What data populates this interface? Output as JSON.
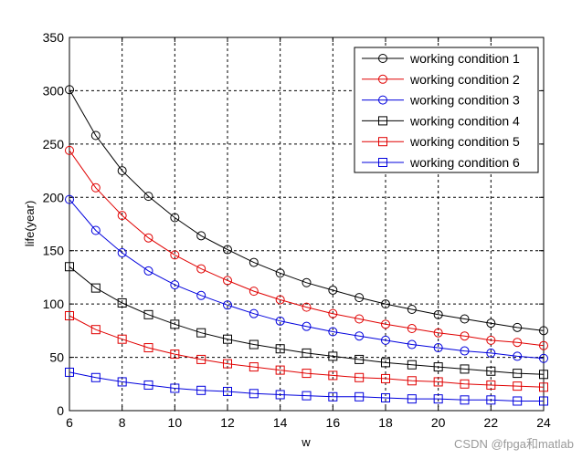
{
  "chart_data": {
    "type": "line",
    "title": "",
    "xlabel": "w",
    "ylabel": "life(year)",
    "xlim": [
      6,
      24
    ],
    "ylim": [
      0,
      350
    ],
    "xticks": [
      6,
      8,
      10,
      12,
      14,
      16,
      18,
      20,
      22,
      24
    ],
    "yticks": [
      0,
      50,
      100,
      150,
      200,
      250,
      300,
      350
    ],
    "grid": true,
    "legend_position": "top-right",
    "x": [
      6,
      7,
      8,
      9,
      10,
      11,
      12,
      13,
      14,
      15,
      16,
      17,
      18,
      19,
      20,
      21,
      22,
      23,
      24
    ],
    "series": [
      {
        "name": "working condition 1",
        "color": "#000000",
        "marker": "circle",
        "values": [
          301,
          258,
          225,
          201,
          181,
          164,
          151,
          139,
          129,
          120,
          113,
          106,
          100,
          95,
          90,
          86,
          82,
          78,
          75
        ]
      },
      {
        "name": "working condition 2",
        "color": "#e00000",
        "marker": "circle",
        "values": [
          244,
          209,
          183,
          162,
          146,
          133,
          122,
          112,
          104,
          97,
          91,
          86,
          81,
          77,
          73,
          70,
          66,
          64,
          61
        ]
      },
      {
        "name": "working condition 3",
        "color": "#0000dd",
        "marker": "circle",
        "values": [
          198,
          169,
          148,
          131,
          118,
          108,
          99,
          91,
          84,
          79,
          74,
          70,
          66,
          62,
          59,
          56,
          54,
          51,
          49
        ]
      },
      {
        "name": "working condition 4",
        "color": "#000000",
        "marker": "square",
        "values": [
          135,
          115,
          101,
          90,
          81,
          73,
          67,
          62,
          58,
          54,
          51,
          48,
          45,
          43,
          41,
          39,
          37,
          35,
          34
        ]
      },
      {
        "name": "working condition 5",
        "color": "#e00000",
        "marker": "square",
        "values": [
          89,
          76,
          67,
          59,
          53,
          48,
          44,
          41,
          38,
          35,
          33,
          31,
          30,
          28,
          27,
          25,
          24,
          23,
          22
        ]
      },
      {
        "name": "working condition 6",
        "color": "#0000dd",
        "marker": "square",
        "values": [
          36,
          31,
          27,
          24,
          21,
          19,
          18,
          16,
          15,
          14,
          13,
          13,
          12,
          11,
          11,
          10,
          10,
          9,
          9
        ]
      }
    ]
  },
  "watermark": "CSDN @fpga和matlab"
}
